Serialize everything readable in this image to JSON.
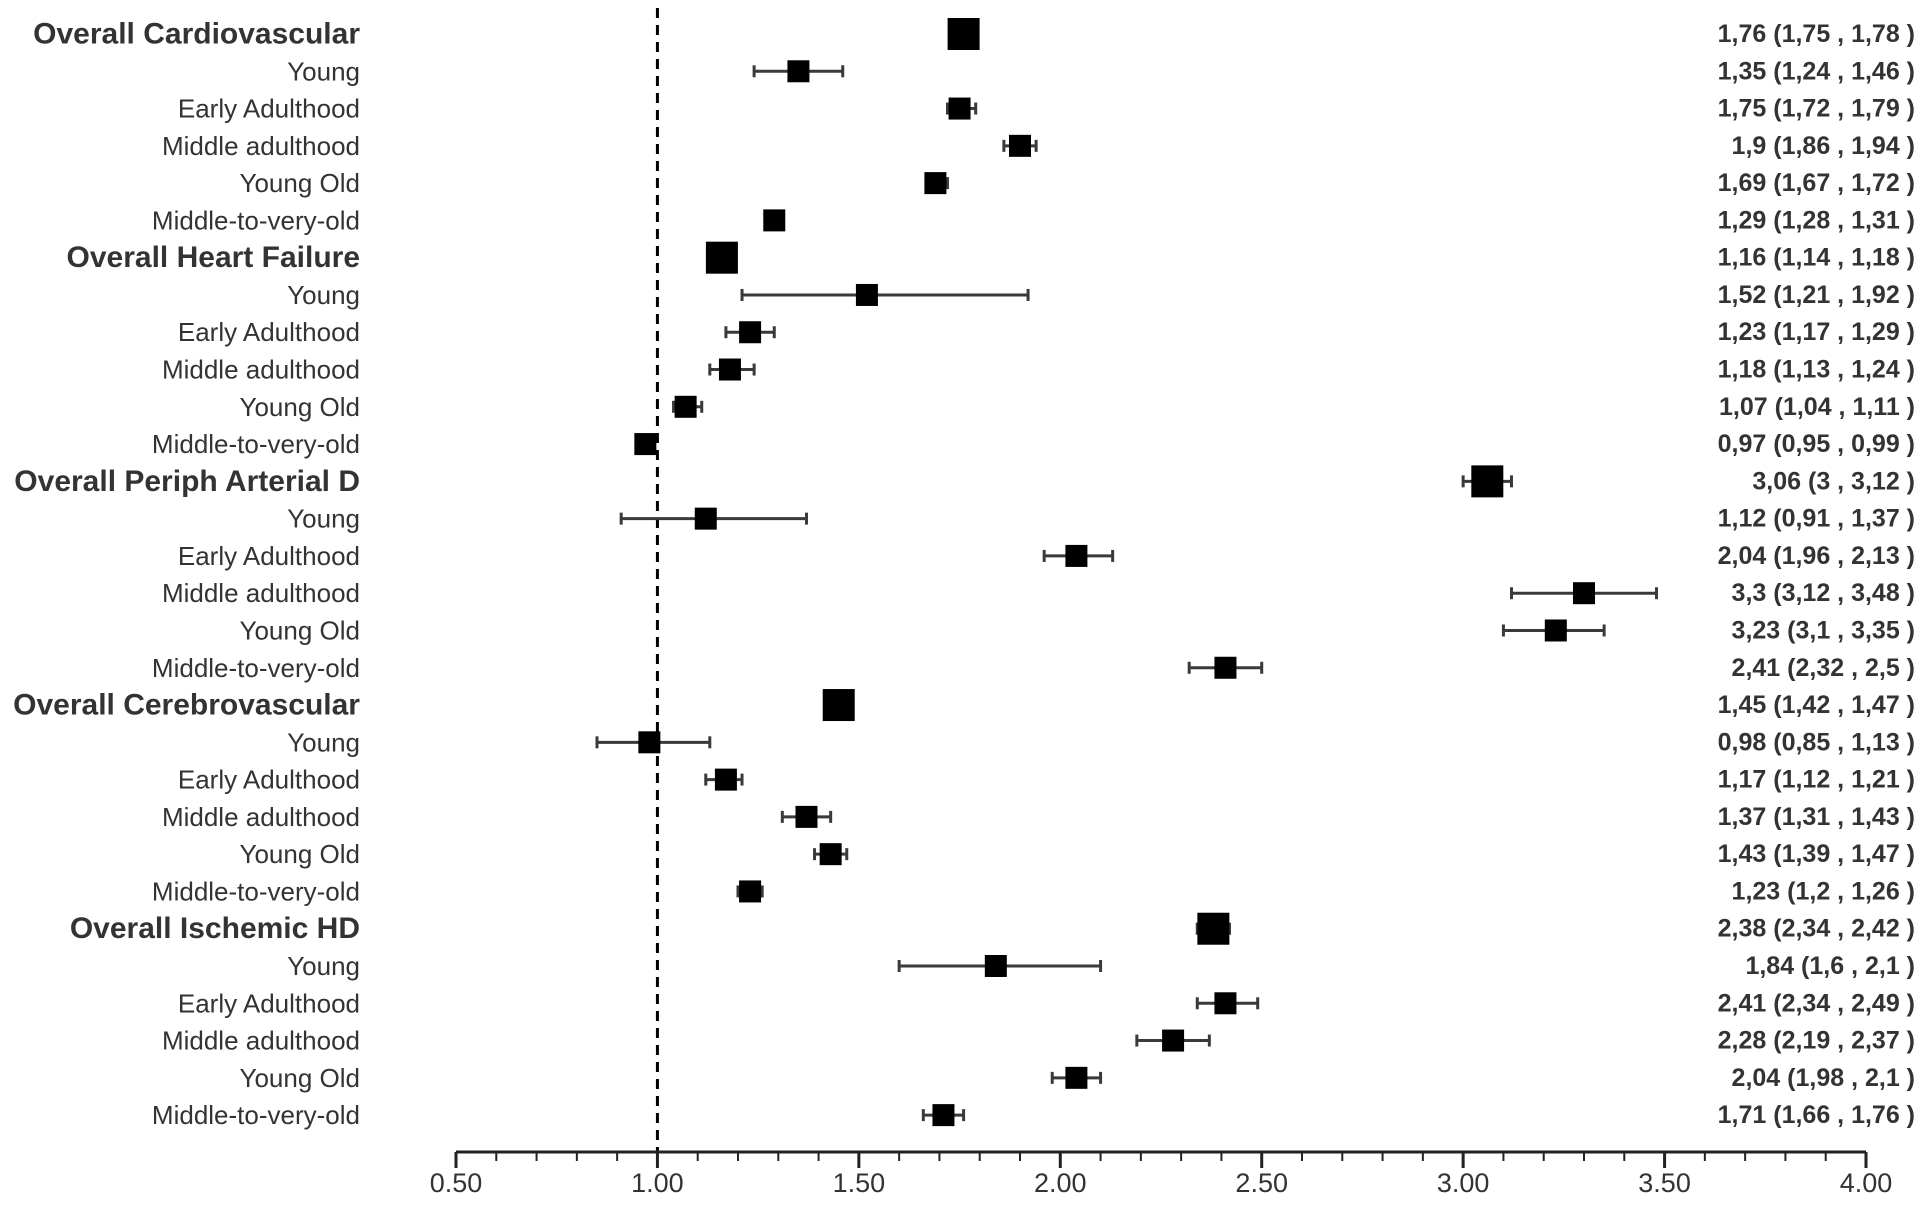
{
  "chart_data": {
    "type": "forest",
    "title": "",
    "xlabel": "",
    "ylabel": "",
    "xlim": [
      0.5,
      4.0
    ],
    "x_ticks": [
      "0.50",
      "1.00",
      "1.50",
      "2.00",
      "2.50",
      "3.00",
      "3.50",
      "4.00"
    ],
    "reference_line": 1.0,
    "grid": false,
    "rows": [
      {
        "label": "Overall Cardiovascular",
        "overall": true,
        "estimate": 1.76,
        "lower": 1.75,
        "upper": 1.78,
        "ci_text": "1,76 (1,75 , 1,78 )"
      },
      {
        "label": "Young",
        "overall": false,
        "estimate": 1.35,
        "lower": 1.24,
        "upper": 1.46,
        "ci_text": "1,35 (1,24 , 1,46 )"
      },
      {
        "label": "Early Adulthood",
        "overall": false,
        "estimate": 1.75,
        "lower": 1.72,
        "upper": 1.79,
        "ci_text": "1,75 (1,72 , 1,79 )"
      },
      {
        "label": "Middle adulthood",
        "overall": false,
        "estimate": 1.9,
        "lower": 1.86,
        "upper": 1.94,
        "ci_text": "1,9 (1,86 , 1,94 )"
      },
      {
        "label": "Young Old",
        "overall": false,
        "estimate": 1.69,
        "lower": 1.67,
        "upper": 1.72,
        "ci_text": "1,69 (1,67 , 1,72 )"
      },
      {
        "label": "Middle-to-very-old",
        "overall": false,
        "estimate": 1.29,
        "lower": 1.28,
        "upper": 1.31,
        "ci_text": "1,29 (1,28 , 1,31 )"
      },
      {
        "label": "Overall Heart Failure",
        "overall": true,
        "estimate": 1.16,
        "lower": 1.14,
        "upper": 1.18,
        "ci_text": "1,16 (1,14 , 1,18 )"
      },
      {
        "label": "Young",
        "overall": false,
        "estimate": 1.52,
        "lower": 1.21,
        "upper": 1.92,
        "ci_text": "1,52 (1,21 , 1,92 )"
      },
      {
        "label": "Early Adulthood",
        "overall": false,
        "estimate": 1.23,
        "lower": 1.17,
        "upper": 1.29,
        "ci_text": "1,23 (1,17 , 1,29 )"
      },
      {
        "label": "Middle adulthood",
        "overall": false,
        "estimate": 1.18,
        "lower": 1.13,
        "upper": 1.24,
        "ci_text": "1,18 (1,13 , 1,24 )"
      },
      {
        "label": "Young Old",
        "overall": false,
        "estimate": 1.07,
        "lower": 1.04,
        "upper": 1.11,
        "ci_text": "1,07 (1,04 , 1,11 )"
      },
      {
        "label": "Middle-to-very-old",
        "overall": false,
        "estimate": 0.97,
        "lower": 0.95,
        "upper": 0.99,
        "ci_text": "0,97 (0,95 , 0,99 )"
      },
      {
        "label": "Overall Periph Arterial D",
        "overall": true,
        "estimate": 3.06,
        "lower": 3.0,
        "upper": 3.12,
        "ci_text": "3,06 (3 , 3,12 )"
      },
      {
        "label": "Young",
        "overall": false,
        "estimate": 1.12,
        "lower": 0.91,
        "upper": 1.37,
        "ci_text": "1,12 (0,91 , 1,37 )"
      },
      {
        "label": "Early Adulthood",
        "overall": false,
        "estimate": 2.04,
        "lower": 1.96,
        "upper": 2.13,
        "ci_text": "2,04 (1,96 , 2,13 )"
      },
      {
        "label": "Middle adulthood",
        "overall": false,
        "estimate": 3.3,
        "lower": 3.12,
        "upper": 3.48,
        "ci_text": "3,3 (3,12 , 3,48 )"
      },
      {
        "label": "Young Old",
        "overall": false,
        "estimate": 3.23,
        "lower": 3.1,
        "upper": 3.35,
        "ci_text": "3,23 (3,1 , 3,35 )"
      },
      {
        "label": "Middle-to-very-old",
        "overall": false,
        "estimate": 2.41,
        "lower": 2.32,
        "upper": 2.5,
        "ci_text": "2,41 (2,32 , 2,5 )"
      },
      {
        "label": "Overall Cerebrovascular",
        "overall": true,
        "estimate": 1.45,
        "lower": 1.42,
        "upper": 1.47,
        "ci_text": "1,45 (1,42 , 1,47 )"
      },
      {
        "label": "Young",
        "overall": false,
        "estimate": 0.98,
        "lower": 0.85,
        "upper": 1.13,
        "ci_text": "0,98 (0,85 , 1,13 )"
      },
      {
        "label": "Early Adulthood",
        "overall": false,
        "estimate": 1.17,
        "lower": 1.12,
        "upper": 1.21,
        "ci_text": "1,17 (1,12 , 1,21 )"
      },
      {
        "label": "Middle adulthood",
        "overall": false,
        "estimate": 1.37,
        "lower": 1.31,
        "upper": 1.43,
        "ci_text": "1,37 (1,31 , 1,43 )"
      },
      {
        "label": "Young Old",
        "overall": false,
        "estimate": 1.43,
        "lower": 1.39,
        "upper": 1.47,
        "ci_text": "1,43 (1,39 , 1,47 )"
      },
      {
        "label": "Middle-to-very-old",
        "overall": false,
        "estimate": 1.23,
        "lower": 1.2,
        "upper": 1.26,
        "ci_text": "1,23 (1,2 , 1,26 )"
      },
      {
        "label": "Overall Ischemic HD",
        "overall": true,
        "estimate": 2.38,
        "lower": 2.34,
        "upper": 2.42,
        "ci_text": "2,38 (2,34 , 2,42 )"
      },
      {
        "label": "Young",
        "overall": false,
        "estimate": 1.84,
        "lower": 1.6,
        "upper": 2.1,
        "ci_text": "1,84 (1,6 , 2,1 )"
      },
      {
        "label": "Early Adulthood",
        "overall": false,
        "estimate": 2.41,
        "lower": 2.34,
        "upper": 2.49,
        "ci_text": "2,41 (2,34 , 2,49 )"
      },
      {
        "label": "Middle adulthood",
        "overall": false,
        "estimate": 2.28,
        "lower": 2.19,
        "upper": 2.37,
        "ci_text": "2,28 (2,19 , 2,37 )"
      },
      {
        "label": "Young Old",
        "overall": false,
        "estimate": 2.04,
        "lower": 1.98,
        "upper": 2.1,
        "ci_text": "2,04 (1,98 , 2,1 )"
      },
      {
        "label": "Middle-to-very-old",
        "overall": false,
        "estimate": 1.71,
        "lower": 1.66,
        "upper": 1.76,
        "ci_text": "1,71 (1,66 , 1,76 )"
      }
    ],
    "colors": {
      "marker": "#000000",
      "ci_line": "#3a3a3a",
      "text": "#333333",
      "axis": "#222222"
    }
  }
}
